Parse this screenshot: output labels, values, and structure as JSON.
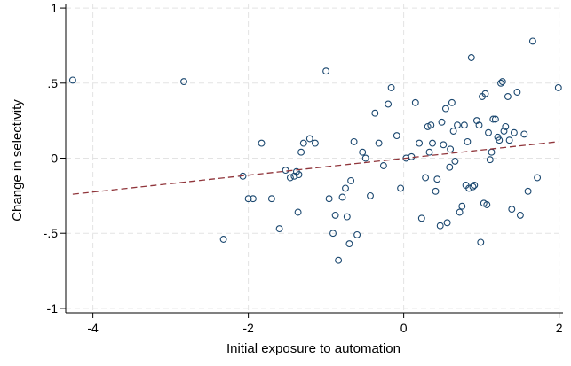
{
  "chart_data": {
    "type": "scatter",
    "xlabel": "Initial exposure to automation",
    "ylabel": "Change in selectivity",
    "xlim": [
      -4.35,
      2.05
    ],
    "ylim": [
      -1.03,
      1.03
    ],
    "x_ticks": [
      {
        "value": -4,
        "label": "-4"
      },
      {
        "value": -2,
        "label": "-2"
      },
      {
        "value": 0,
        "label": "0"
      },
      {
        "value": 2,
        "label": "2"
      }
    ],
    "y_ticks": [
      {
        "value": 1,
        "label": "1"
      },
      {
        "value": 0.5,
        "label": ".5"
      },
      {
        "value": 0,
        "label": "0"
      },
      {
        "value": -0.5,
        "label": "-.5"
      },
      {
        "value": -1,
        "label": "-1"
      }
    ],
    "grid": true,
    "marker_color": "#1a476f",
    "fit_line_color": "#90353b",
    "series": [
      {
        "marker": "hollow-circle",
        "points": [
          [
            -4.26,
            0.52
          ],
          [
            -2.83,
            0.51
          ],
          [
            -2.07,
            -0.12
          ],
          [
            -2.0,
            -0.27
          ],
          [
            -1.94,
            -0.27
          ],
          [
            -1.83,
            0.1
          ],
          [
            -1.7,
            -0.27
          ],
          [
            -1.6,
            -0.47
          ],
          [
            -1.52,
            -0.08
          ],
          [
            -1.46,
            -0.13
          ],
          [
            -1.41,
            -0.12
          ],
          [
            -1.35,
            -0.11
          ],
          [
            -1.29,
            0.1
          ],
          [
            -1.21,
            0.13
          ],
          [
            -1.14,
            0.1
          ],
          [
            -1.36,
            -0.36
          ],
          [
            -1.32,
            0.04
          ],
          [
            -1.38,
            -0.09
          ],
          [
            -2.32,
            -0.54
          ],
          [
            -1.0,
            0.58
          ],
          [
            -0.96,
            -0.27
          ],
          [
            -0.91,
            -0.5
          ],
          [
            -0.88,
            -0.38
          ],
          [
            -0.84,
            -0.68
          ],
          [
            -0.79,
            -0.26
          ],
          [
            -0.75,
            -0.2
          ],
          [
            -0.73,
            -0.39
          ],
          [
            -0.7,
            -0.57
          ],
          [
            -0.68,
            -0.15
          ],
          [
            -0.64,
            0.11
          ],
          [
            -0.6,
            -0.51
          ],
          [
            -0.53,
            0.04
          ],
          [
            -0.49,
            0.0
          ],
          [
            -0.43,
            -0.25
          ],
          [
            -0.37,
            0.3
          ],
          [
            -0.32,
            0.1
          ],
          [
            -0.26,
            -0.05
          ],
          [
            -0.2,
            0.36
          ],
          [
            -0.16,
            0.47
          ],
          [
            -0.09,
            0.15
          ],
          [
            -0.04,
            -0.2
          ],
          [
            0.1,
            0.01
          ],
          [
            0.15,
            0.37
          ],
          [
            0.2,
            0.1
          ],
          [
            0.23,
            -0.4
          ],
          [
            0.28,
            -0.13
          ],
          [
            0.31,
            0.21
          ],
          [
            0.33,
            0.04
          ],
          [
            0.35,
            0.22
          ],
          [
            0.37,
            0.1
          ],
          [
            0.41,
            -0.22
          ],
          [
            0.43,
            -0.14
          ],
          [
            0.47,
            -0.45
          ],
          [
            0.49,
            0.24
          ],
          [
            0.51,
            0.09
          ],
          [
            0.54,
            0.33
          ],
          [
            0.56,
            -0.43
          ],
          [
            0.59,
            -0.06
          ],
          [
            0.6,
            0.06
          ],
          [
            0.62,
            0.37
          ],
          [
            0.64,
            0.18
          ],
          [
            0.66,
            -0.02
          ],
          [
            0.69,
            0.22
          ],
          [
            0.72,
            -0.36
          ],
          [
            0.75,
            -0.32
          ],
          [
            0.78,
            0.22
          ],
          [
            0.8,
            -0.18
          ],
          [
            0.82,
            0.11
          ],
          [
            0.84,
            -0.2
          ],
          [
            0.87,
            0.67
          ],
          [
            0.89,
            -0.19
          ],
          [
            0.91,
            -0.18
          ],
          [
            0.94,
            0.25
          ],
          [
            0.97,
            0.22
          ],
          [
            0.99,
            -0.56
          ],
          [
            1.01,
            0.41
          ],
          [
            1.03,
            -0.3
          ],
          [
            1.05,
            0.43
          ],
          [
            1.07,
            -0.31
          ],
          [
            1.09,
            0.17
          ],
          [
            1.11,
            -0.01
          ],
          [
            1.13,
            0.04
          ],
          [
            1.15,
            0.26
          ],
          [
            1.18,
            0.26
          ],
          [
            1.21,
            0.14
          ],
          [
            1.23,
            0.12
          ],
          [
            1.25,
            0.5
          ],
          [
            1.27,
            0.51
          ],
          [
            1.29,
            0.18
          ],
          [
            1.31,
            0.21
          ],
          [
            1.34,
            0.41
          ],
          [
            1.36,
            0.12
          ],
          [
            1.39,
            -0.34
          ],
          [
            1.42,
            0.17
          ],
          [
            1.46,
            0.44
          ],
          [
            1.5,
            -0.38
          ],
          [
            1.55,
            0.16
          ],
          [
            1.6,
            -0.22
          ],
          [
            1.66,
            0.78
          ],
          [
            1.72,
            -0.13
          ],
          [
            1.99,
            0.47
          ],
          [
            0.03,
            0.0
          ]
        ]
      }
    ],
    "fit_line": {
      "style": "dashed",
      "x": [
        -4.26,
        1.99
      ],
      "y": [
        -0.24,
        0.11
      ]
    }
  }
}
